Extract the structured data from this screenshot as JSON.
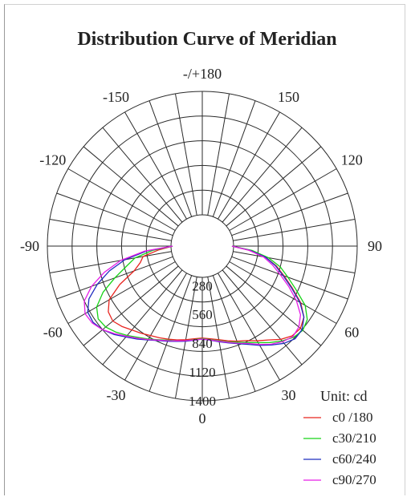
{
  "chart_data": {
    "type": "polar",
    "title": "Distribution Curve of  Meridian",
    "unit_label": "Unit: cd",
    "angle_labels": [
      {
        "angle": 0,
        "text": "0"
      },
      {
        "angle": 30,
        "text": "30"
      },
      {
        "angle": 60,
        "text": "60"
      },
      {
        "angle": 90,
        "text": "90"
      },
      {
        "angle": 120,
        "text": "120"
      },
      {
        "angle": 150,
        "text": "150"
      },
      {
        "angle": 180,
        "text": "-/+180"
      },
      {
        "angle": -150,
        "text": "-150"
      },
      {
        "angle": -120,
        "text": "-120"
      },
      {
        "angle": -90,
        "text": "-90"
      },
      {
        "angle": -60,
        "text": "-60"
      },
      {
        "angle": -30,
        "text": "-30"
      }
    ],
    "radial_ticks": [
      {
        "value": 280,
        "text": "280"
      },
      {
        "value": 560,
        "text": "560"
      },
      {
        "value": 840,
        "text": "840"
      },
      {
        "value": 1120,
        "text": "1120"
      },
      {
        "value": 1400,
        "text": "1400"
      }
    ],
    "r_center": 200,
    "r_max": 1400,
    "ring_count": 5,
    "spoke_step_deg": 10,
    "angle_range": [
      -90,
      90
    ],
    "series": [
      {
        "name": "c0 /180",
        "color": "#e8241f",
        "angles": [
          -90,
          -85,
          -80,
          -75,
          -70,
          -65,
          -60,
          -55,
          -50,
          -45,
          -40,
          -35,
          -30,
          -25,
          -20,
          -15,
          -10,
          -5,
          0,
          5,
          10,
          15,
          20,
          25,
          30,
          35,
          40,
          45,
          50,
          55,
          60,
          65,
          70,
          75,
          80,
          85,
          90
        ],
        "values": [
          0,
          320,
          480,
          520,
          600,
          780,
          940,
          1010,
          1030,
          1000,
          960,
          930,
          900,
          880,
          860,
          840,
          820,
          800,
          790,
          800,
          820,
          850,
          880,
          910,
          960,
          1010,
          1080,
          1130,
          1140,
          1100,
          1000,
          860,
          740,
          640,
          520,
          350,
          0
        ]
      },
      {
        "name": "c30/210",
        "color": "#17d317",
        "angles": [
          -90,
          -85,
          -80,
          -75,
          -70,
          -65,
          -60,
          -55,
          -50,
          -45,
          -40,
          -35,
          -30,
          -25,
          -20,
          -15,
          -10,
          -5,
          0,
          5,
          10,
          15,
          20,
          25,
          30,
          35,
          40,
          45,
          50,
          55,
          60,
          65,
          70,
          75,
          80,
          85,
          90
        ],
        "values": [
          0,
          380,
          560,
          660,
          800,
          960,
          1080,
          1130,
          1120,
          1080,
          1030,
          980,
          940,
          900,
          870,
          850,
          830,
          810,
          795,
          810,
          830,
          860,
          890,
          930,
          980,
          1040,
          1100,
          1150,
          1170,
          1140,
          1050,
          900,
          780,
          680,
          550,
          380,
          0
        ]
      },
      {
        "name": "c60/240",
        "color": "#1f2dbf",
        "angles": [
          -90,
          -85,
          -80,
          -75,
          -70,
          -65,
          -60,
          -55,
          -50,
          -45,
          -40,
          -35,
          -30,
          -25,
          -20,
          -15,
          -10,
          -5,
          0,
          5,
          10,
          15,
          20,
          25,
          30,
          35,
          40,
          45,
          50,
          55,
          60,
          65,
          70,
          75,
          80,
          85,
          90
        ],
        "values": [
          0,
          440,
          660,
          830,
          980,
          1110,
          1180,
          1190,
          1160,
          1110,
          1050,
          1000,
          950,
          910,
          880,
          855,
          835,
          815,
          800,
          815,
          840,
          870,
          905,
          950,
          1010,
          1070,
          1130,
          1170,
          1160,
          1100,
          990,
          850,
          730,
          630,
          520,
          360,
          0
        ]
      },
      {
        "name": "c90/270",
        "color": "#e61ee6",
        "angles": [
          -90,
          -85,
          -80,
          -75,
          -70,
          -65,
          -60,
          -55,
          -50,
          -45,
          -40,
          -35,
          -30,
          -25,
          -20,
          -15,
          -10,
          -5,
          0,
          5,
          10,
          15,
          20,
          25,
          30,
          35,
          40,
          45,
          50,
          55,
          60,
          65,
          70,
          75,
          80,
          85,
          90
        ],
        "values": [
          0,
          460,
          700,
          880,
          1040,
          1160,
          1210,
          1200,
          1160,
          1100,
          1040,
          990,
          945,
          905,
          875,
          850,
          830,
          812,
          800,
          812,
          835,
          865,
          900,
          940,
          1000,
          1060,
          1110,
          1140,
          1120,
          1060,
          950,
          820,
          700,
          600,
          500,
          350,
          0
        ]
      }
    ]
  }
}
